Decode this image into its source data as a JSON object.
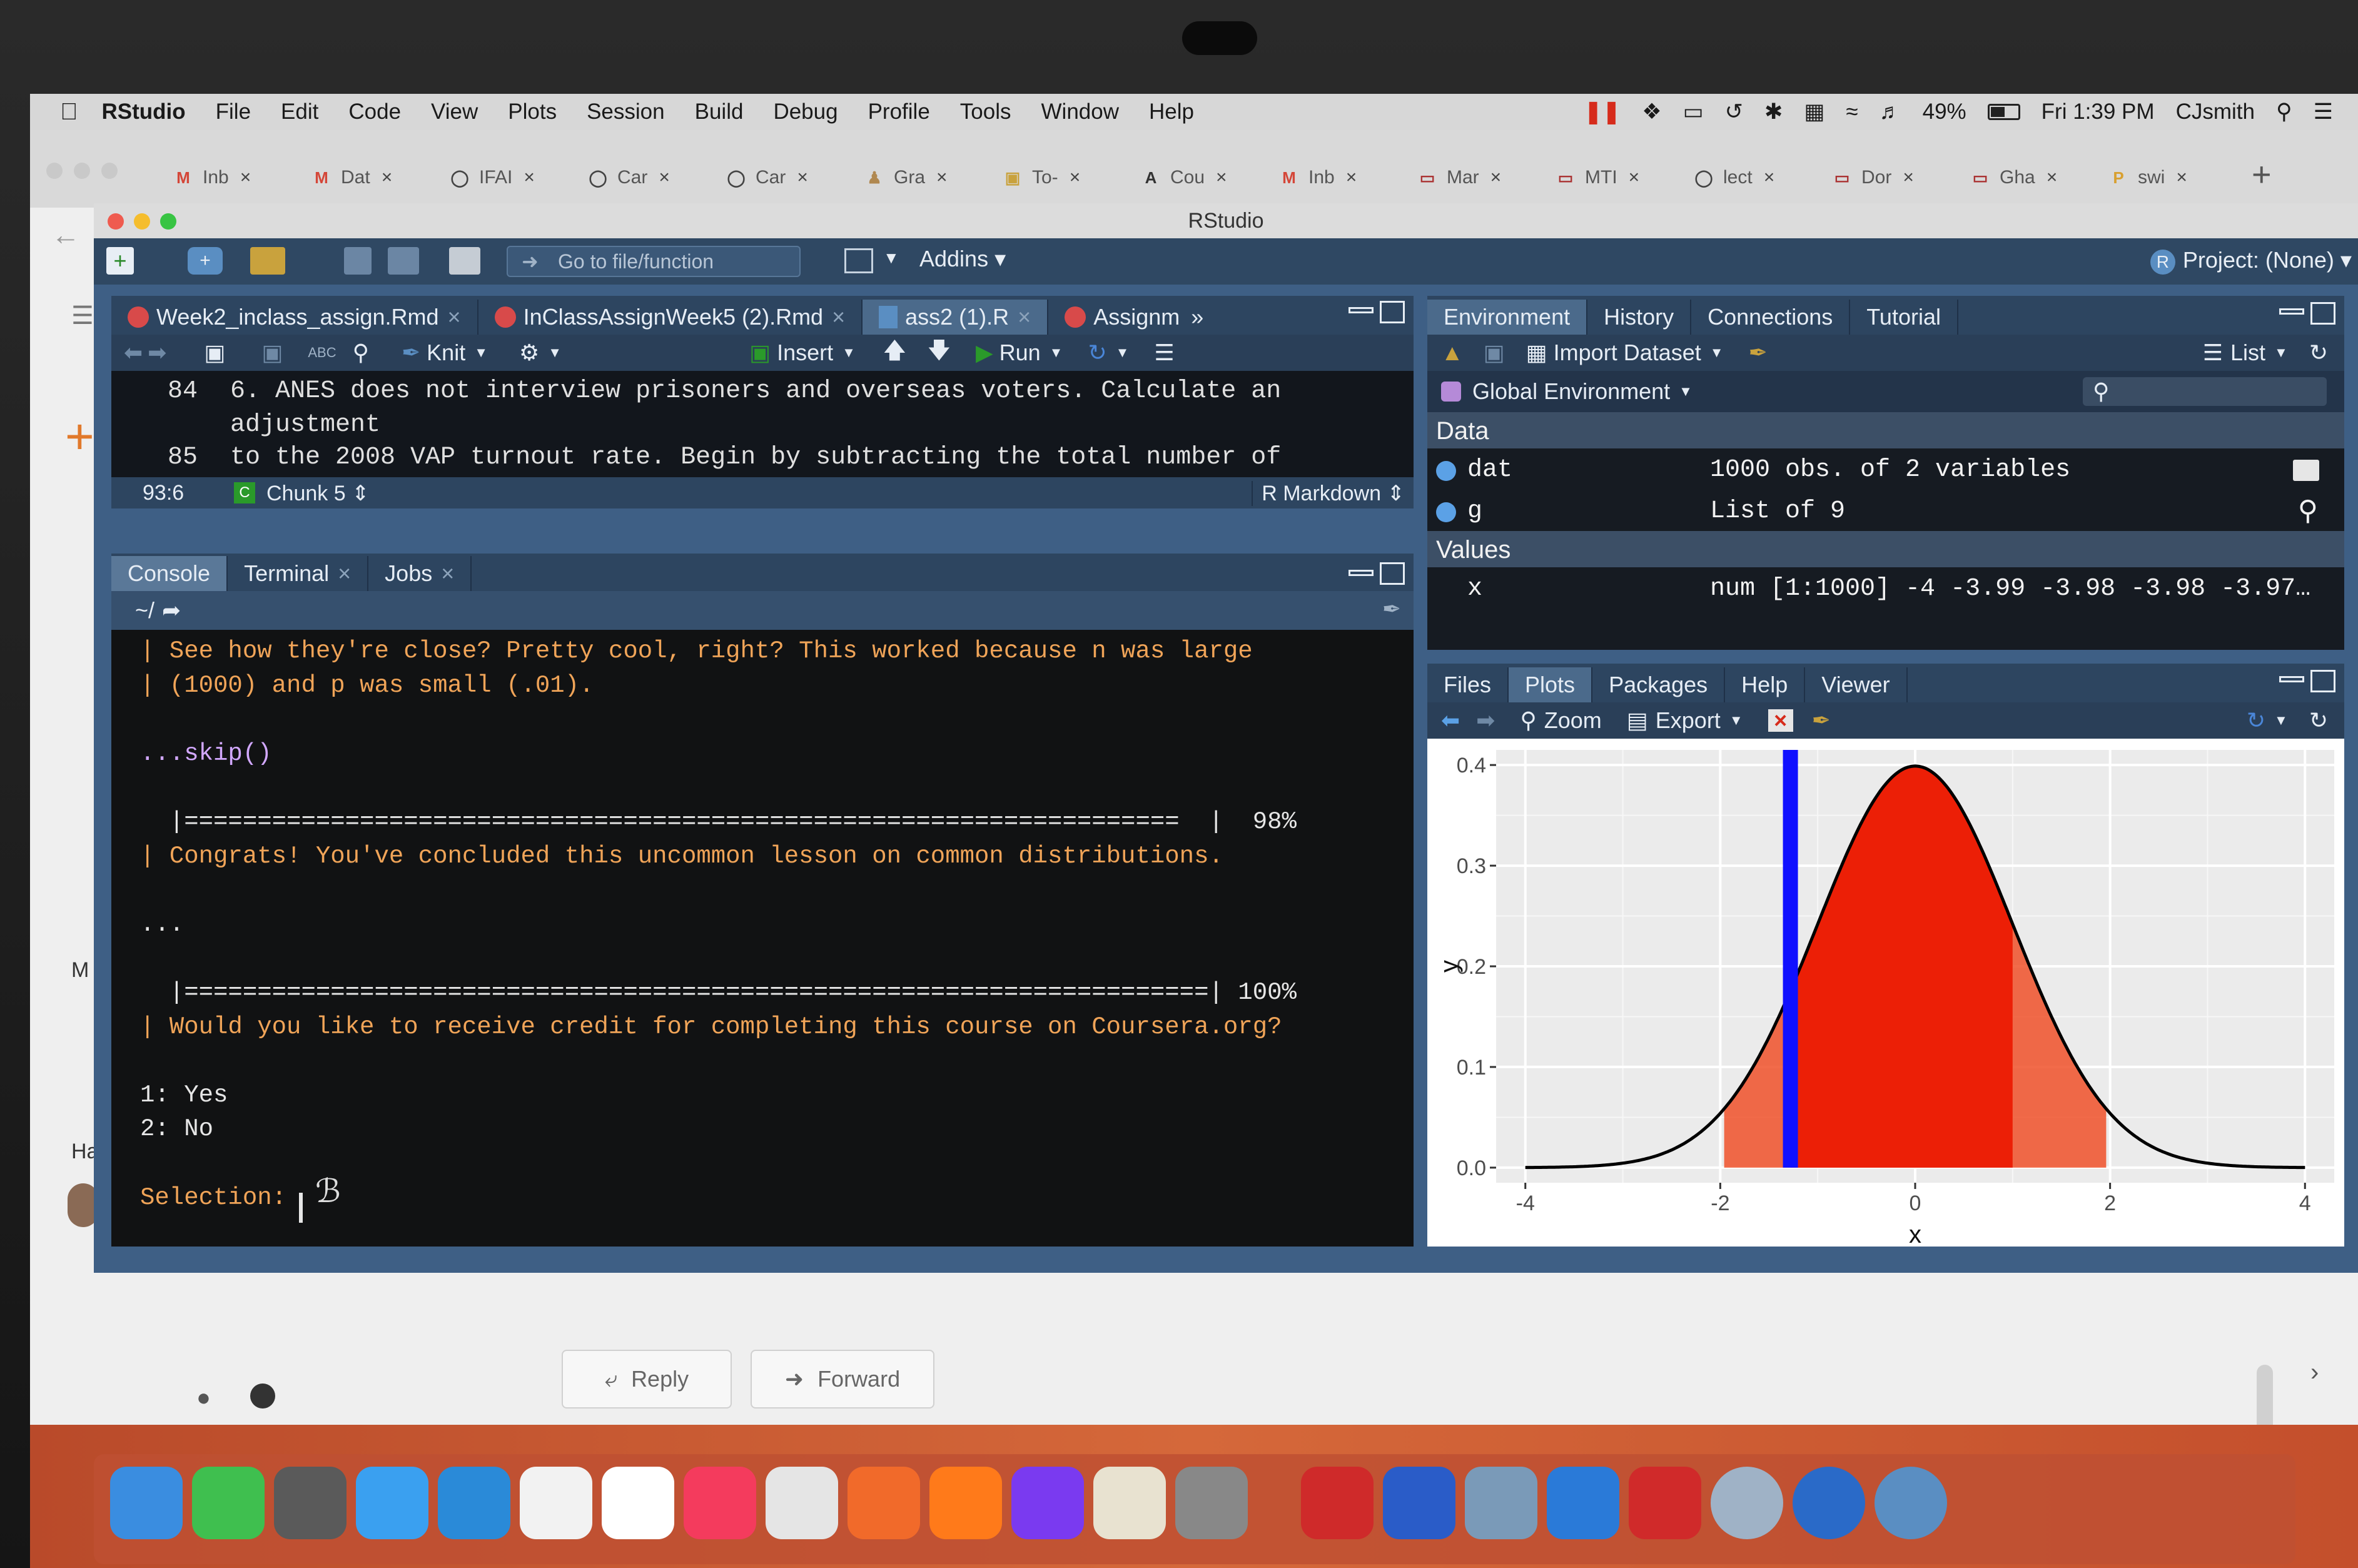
{
  "menubar": {
    "app": "RStudio",
    "items": [
      "File",
      "Edit",
      "Code",
      "View",
      "Plots",
      "Session",
      "Build",
      "Debug",
      "Profile",
      "Tools",
      "Window",
      "Help"
    ],
    "battery": "49%",
    "clock": "Fri 1:39 PM",
    "user": "CJsmith"
  },
  "browser_tabs": [
    {
      "label": "Inb",
      "icon": "gmail-icon"
    },
    {
      "label": "Dat",
      "icon": "gmail-icon"
    },
    {
      "label": "IFAI",
      "icon": "globe-icon"
    },
    {
      "label": "Car",
      "icon": "globe-icon"
    },
    {
      "label": "Car",
      "icon": "globe-icon"
    },
    {
      "label": "Gra",
      "icon": "person-icon"
    },
    {
      "label": "To-",
      "icon": "note-icon"
    },
    {
      "label": "Cou",
      "icon": "university-icon"
    },
    {
      "label": "Inb",
      "icon": "gmail-icon"
    },
    {
      "label": "Mar",
      "icon": "canvas-icon"
    },
    {
      "label": "MTI",
      "icon": "canvas-icon"
    },
    {
      "label": "lect",
      "icon": "globe-icon"
    },
    {
      "label": "Dor",
      "icon": "canvas-icon"
    },
    {
      "label": "Gha",
      "icon": "canvas-icon"
    },
    {
      "label": "swi",
      "icon": "p-icon"
    }
  ],
  "email": {
    "reply_label": "Reply",
    "forward_label": "Forward",
    "sidebar_letters": [
      "M",
      "Ha"
    ]
  },
  "rstudio": {
    "window_title": "RStudio",
    "goto_placeholder": "Go to file/function",
    "addins_label": "Addins",
    "project_label": "Project: (None)",
    "editor": {
      "tabs": [
        "Week2_inclass_assign.Rmd",
        "InClassAssignWeek5 (2).Rmd",
        "ass2 (1).R",
        "Assignm"
      ],
      "toolbar": {
        "knit": "Knit",
        "insert": "Insert",
        "run": "Run"
      },
      "lines": [
        {
          "num": "84",
          "text": "6. ANES does not interview prisoners and overseas voters. Calculate an"
        },
        {
          "num": "",
          "text": "adjustment"
        },
        {
          "num": "85",
          "text": "to the 2008 VAP turnout rate. Begin by subtracting the total number of"
        }
      ],
      "status": {
        "position": "93:6",
        "chunk": "Chunk 5",
        "mode": "R Markdown"
      }
    },
    "console": {
      "tabs": [
        "Console",
        "Terminal",
        "Jobs"
      ],
      "path": "~/",
      "lines": [
        {
          "text": "| See how they're close? Pretty cool, right? This worked because n was large",
          "color": "orange"
        },
        {
          "text": "| (1000) and p was small (.01).",
          "color": "orange"
        },
        {
          "text": "",
          "color": "white"
        },
        {
          "text": "...skip()",
          "color": "purple"
        },
        {
          "text": "",
          "color": "white"
        },
        {
          "text": "  |====================================================================  |  98%",
          "color": "white"
        },
        {
          "text": "| Congrats! You've concluded this uncommon lesson on common distributions.",
          "color": "orange"
        },
        {
          "text": "",
          "color": "white"
        },
        {
          "text": "...",
          "color": "white"
        },
        {
          "text": "",
          "color": "white"
        },
        {
          "text": "  |======================================================================| 100%",
          "color": "white"
        },
        {
          "text": "| Would you like to receive credit for completing this course on Coursera.org?",
          "color": "orange"
        },
        {
          "text": "",
          "color": "white"
        },
        {
          "text": "1: Yes",
          "color": "white"
        },
        {
          "text": "2: No",
          "color": "white"
        },
        {
          "text": "",
          "color": "white"
        },
        {
          "text": "Selection: ",
          "color": "orange"
        }
      ]
    },
    "environment": {
      "tabs": [
        "Environment",
        "History",
        "Connections",
        "Tutorial"
      ],
      "import_label": "Import Dataset",
      "list_label": "List",
      "scope_label": "Global Environment",
      "data_header": "Data",
      "data": [
        {
          "name": "dat",
          "value": "1000 obs. of 2 variables"
        },
        {
          "name": "g",
          "value": "List of 9"
        }
      ],
      "values_header": "Values",
      "values": [
        {
          "name": "x",
          "value": "num [1:1000] -4 -3.99 -3.98 -3.98 -3.97…"
        }
      ]
    },
    "files": {
      "tabs": [
        "Files",
        "Plots",
        "Packages",
        "Help",
        "Viewer"
      ],
      "zoom_label": "Zoom",
      "export_label": "Export"
    }
  },
  "chart_data": {
    "type": "area",
    "title": "",
    "xlabel": "x",
    "ylabel": "y",
    "xlim": [
      -4.3,
      4.3
    ],
    "ylim": [
      -0.015,
      0.415
    ],
    "xticks": [
      -4,
      -2,
      0,
      2,
      4
    ],
    "yticks": [
      0.0,
      0.1,
      0.2,
      0.3,
      0.4
    ],
    "ytick_labels": [
      "0.0",
      "0.1",
      "0.2",
      "0.3",
      "0.4"
    ],
    "curve": "standard normal density",
    "shaded_regions": [
      {
        "from": -1.96,
        "to": 1.96,
        "color": "#f0512a",
        "fill": "light"
      },
      {
        "from": -1.28,
        "to": 1.0,
        "color": "#ec1f06",
        "fill": "dark"
      }
    ],
    "vline": {
      "x": -1.28,
      "color": "#1010ff"
    },
    "grid": true,
    "background": "#ebebeb"
  },
  "dock_apps": [
    "finder",
    "facetime",
    "launchpad",
    "messages",
    "safari",
    "textedit",
    "photos",
    "music",
    "chrome",
    "brave",
    "firefox",
    "firefox-dev",
    "preview",
    "help",
    "parallels",
    "word",
    "photo-viewer",
    "windows",
    "acrobat",
    "rstudio",
    "r-markdown",
    "r"
  ]
}
